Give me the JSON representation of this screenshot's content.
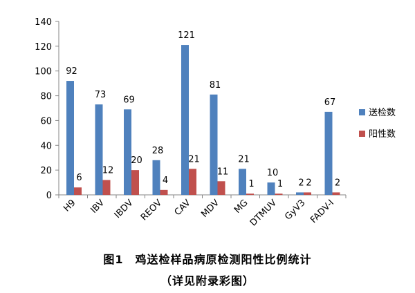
{
  "chart_data": {
    "type": "bar",
    "categories": [
      "H9",
      "IBV",
      "IBDV",
      "REOV",
      "CAV",
      "MDV",
      "MG",
      "DTMUV",
      "GyV3",
      "FADV-I"
    ],
    "series": [
      {
        "name": "送检数",
        "values": [
          92,
          73,
          69,
          28,
          121,
          81,
          21,
          10,
          2,
          67
        ],
        "color": "#4f81bd"
      },
      {
        "name": "阳性数",
        "values": [
          6,
          12,
          20,
          4,
          21,
          11,
          1,
          1,
          2,
          2
        ],
        "color": "#c0504d"
      }
    ],
    "ylim": [
      0,
      140
    ],
    "yticks": [
      0,
      20,
      40,
      60,
      80,
      100,
      120,
      140
    ],
    "grid": false,
    "legend_position": "right",
    "title": "",
    "xlabel": "",
    "ylabel": ""
  },
  "caption": {
    "line1": "图1　鸡送检样品病原检测阳性比例统计",
    "line2": "（详见附录彩图）"
  }
}
